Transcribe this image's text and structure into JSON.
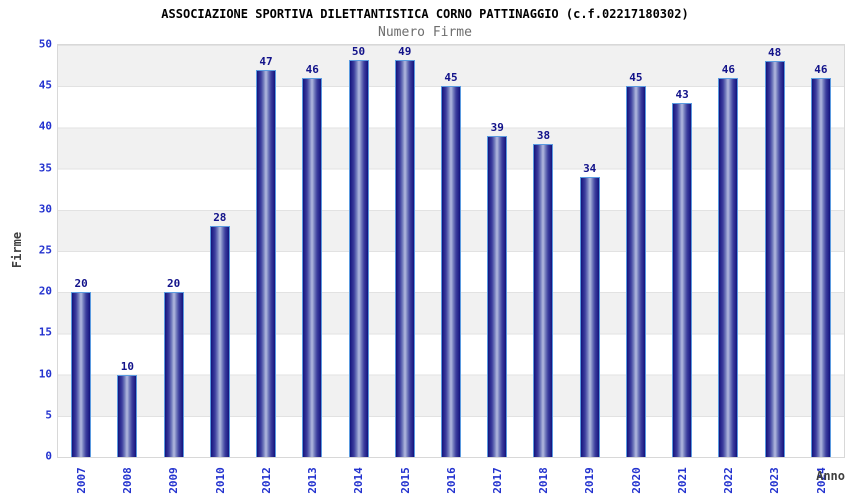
{
  "header": {
    "title": "ASSOCIAZIONE SPORTIVA DILETTANTISTICA CORNO PATTINAGGIO (c.f.02217180302)",
    "subtitle": "Numero Firme"
  },
  "chart_data": {
    "type": "bar",
    "title": "Numero Firme",
    "categories": [
      "2007",
      "2008",
      "2009",
      "2010",
      "2012",
      "2013",
      "2014",
      "2015",
      "2016",
      "2017",
      "2018",
      "2019",
      "2020",
      "2021",
      "2022",
      "2023",
      "2024"
    ],
    "values": [
      20,
      10,
      20,
      28,
      47,
      46,
      50,
      49,
      45,
      39,
      38,
      34,
      45,
      43,
      46,
      48,
      46
    ],
    "xlabel": "Anno",
    "ylabel": "Firme",
    "ylim": [
      0,
      50
    ],
    "y_ticks": [
      0,
      5,
      10,
      15,
      20,
      25,
      30,
      35,
      40,
      45,
      50
    ],
    "grid": "horizontal",
    "legend": "none",
    "colors": {
      "bar_border": "#5b9be0",
      "bar_edge_fill": "#12127c",
      "bar_center_fill": "#aeb5de",
      "value_label": "#13138a",
      "tick_label": "#2433cf",
      "axis_title": "#3f3f3f",
      "subtitle": "#6e6e6e",
      "band": "#f1f1f1",
      "gridline": "#e2e2e2"
    }
  }
}
